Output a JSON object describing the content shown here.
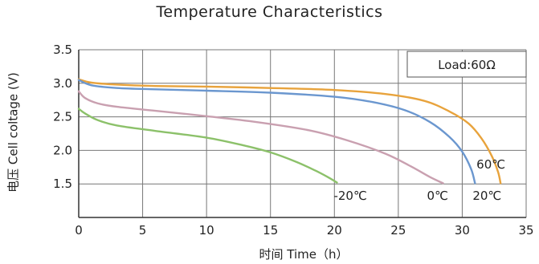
{
  "chart_data": {
    "type": "line",
    "title": "Temperature Characteristics",
    "xlabel": "时间 Time（h）",
    "ylabel": "电压  Cell coltage (V)",
    "xlim": [
      0,
      35
    ],
    "ylim": [
      1.0,
      3.5
    ],
    "x_ticks": [
      0,
      5,
      10,
      15,
      20,
      25,
      30,
      35
    ],
    "y_ticks": [
      1.5,
      2.0,
      2.5,
      3.0,
      3.5
    ],
    "grid": true,
    "annotation": "Load:60Ω",
    "series": [
      {
        "name": "60℃",
        "color": "#e8a33c",
        "x": [
          0,
          1,
          3,
          6,
          10,
          15,
          20,
          24,
          27,
          29,
          30.5,
          31.5,
          32.3,
          32.8,
          33.0
        ],
        "y": [
          3.06,
          3.01,
          2.98,
          2.96,
          2.95,
          2.93,
          2.9,
          2.84,
          2.74,
          2.58,
          2.4,
          2.18,
          1.92,
          1.68,
          1.51
        ]
      },
      {
        "name": "20℃",
        "color": "#6b97cf",
        "x": [
          0,
          1,
          3,
          6,
          10,
          15,
          20,
          23,
          25.5,
          27.5,
          29,
          30,
          30.7,
          31.0
        ],
        "y": [
          3.05,
          2.97,
          2.93,
          2.91,
          2.89,
          2.86,
          2.8,
          2.72,
          2.6,
          2.42,
          2.2,
          1.98,
          1.72,
          1.51
        ]
      },
      {
        "name": "0℃",
        "color": "#c9a0b0",
        "x": [
          0,
          0.5,
          1.5,
          3,
          6,
          10,
          14,
          18,
          21,
          24,
          26,
          27.5,
          28.5
        ],
        "y": [
          2.88,
          2.78,
          2.7,
          2.65,
          2.59,
          2.51,
          2.42,
          2.3,
          2.15,
          1.95,
          1.76,
          1.6,
          1.51
        ]
      },
      {
        "name": "-20℃",
        "color": "#8cc16a",
        "x": [
          0,
          0.5,
          1.5,
          3,
          6,
          10,
          13,
          15,
          17,
          18.5,
          19.5,
          20.2
        ],
        "y": [
          2.62,
          2.55,
          2.45,
          2.37,
          2.29,
          2.19,
          2.07,
          1.97,
          1.83,
          1.7,
          1.6,
          1.52
        ]
      }
    ]
  }
}
